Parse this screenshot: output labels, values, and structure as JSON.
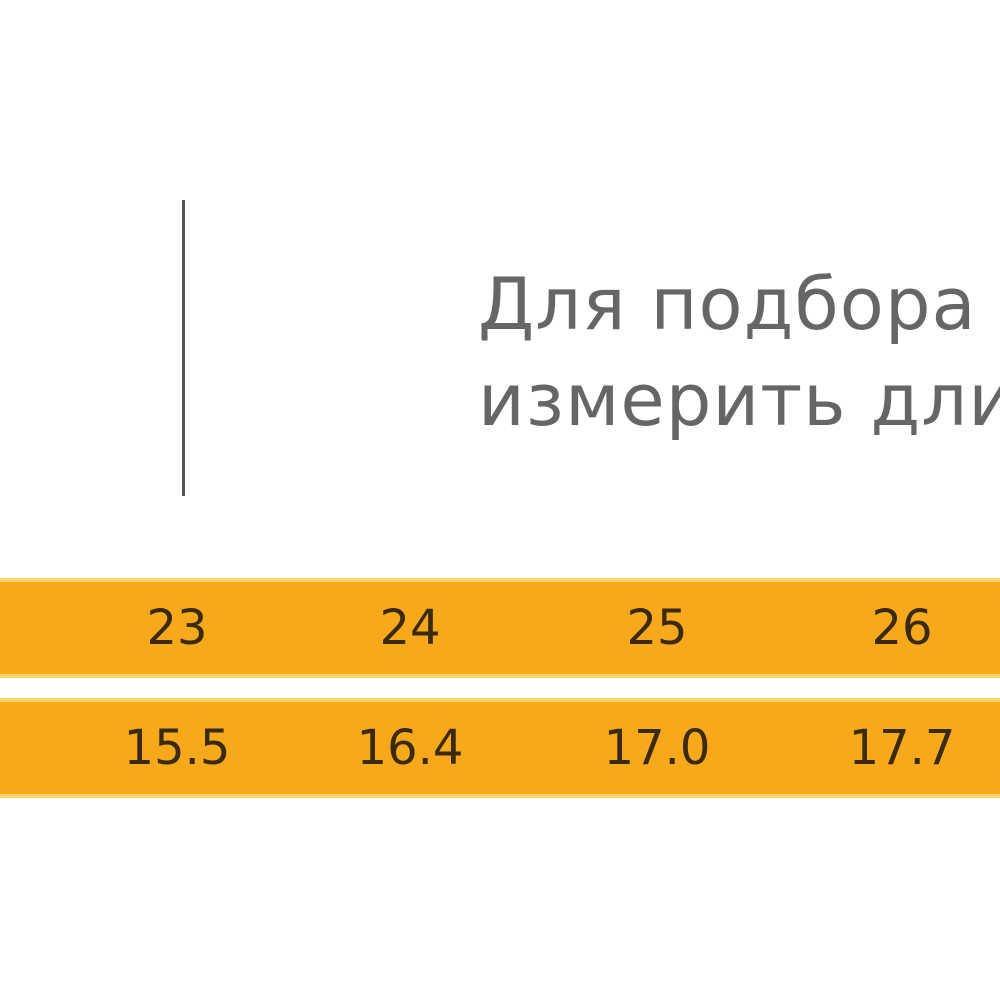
{
  "instruction": {
    "lines": [
      "Для подбора",
      "измерить дли"
    ]
  },
  "table": {
    "rows": [
      [
        "23",
        "24",
        "25",
        "26"
      ],
      [
        "15.5",
        "16.4",
        "17.0",
        "17.7"
      ]
    ]
  }
}
